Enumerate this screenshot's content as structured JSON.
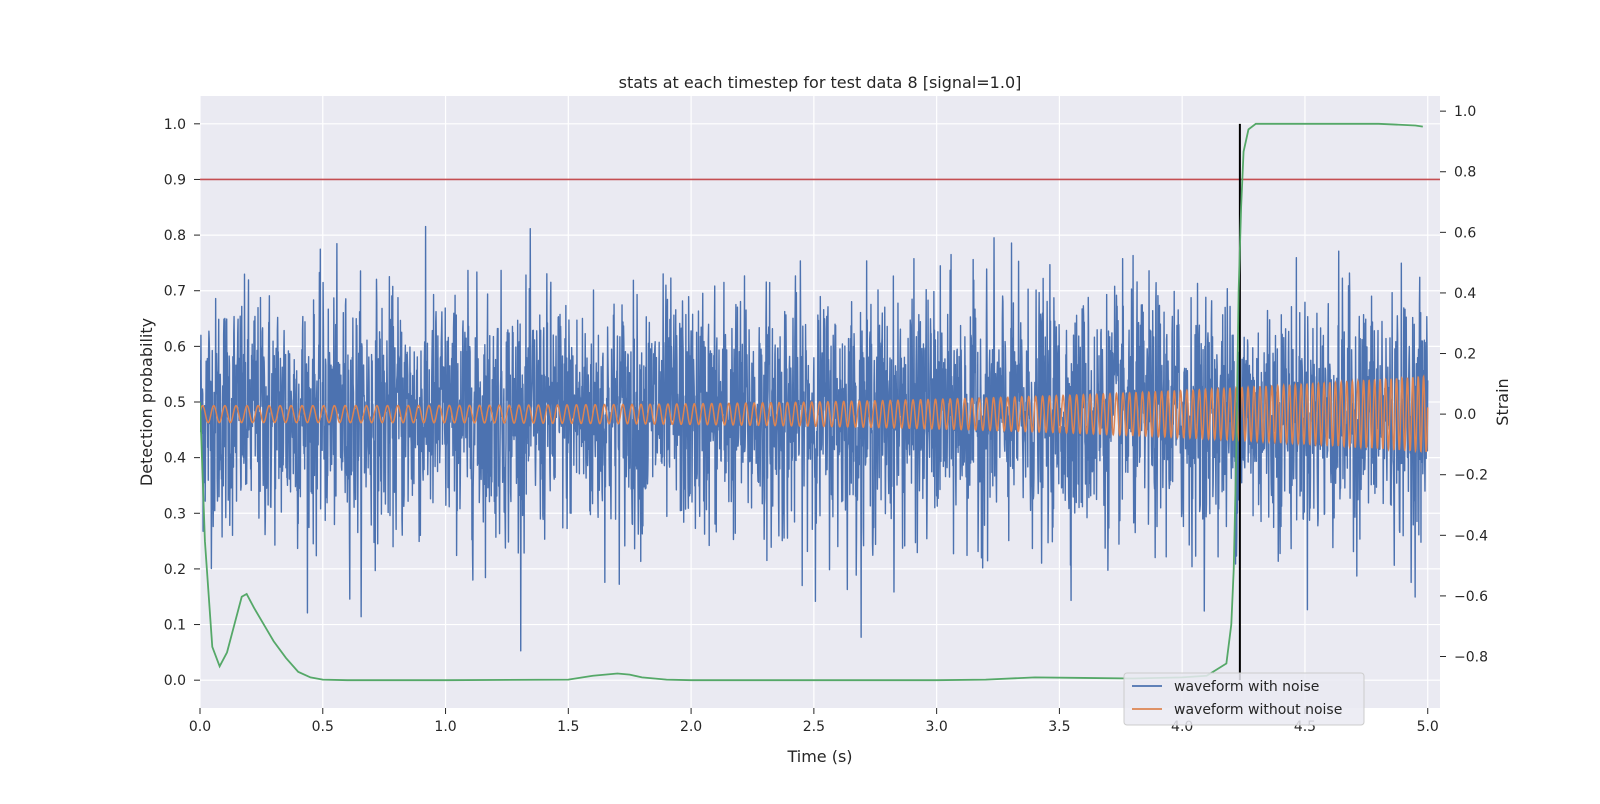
{
  "chart_data": {
    "type": "line",
    "title": "stats at each timestep for test data 8 [signal=1.0]",
    "xlabel": "Time (s)",
    "ylabel_left": "Detection probability",
    "ylabel_right": "Strain",
    "xlim": [
      0.0,
      5.05
    ],
    "ylim_left": [
      -0.05,
      1.05
    ],
    "ylim_right": [
      -0.97,
      1.05
    ],
    "x_ticks": [
      "0.0",
      "0.5",
      "1.0",
      "1.5",
      "2.0",
      "2.5",
      "3.0",
      "3.5",
      "4.0",
      "4.5",
      "5.0"
    ],
    "x_tick_values": [
      0.0,
      0.5,
      1.0,
      1.5,
      2.0,
      2.5,
      3.0,
      3.5,
      4.0,
      4.5,
      5.0
    ],
    "y_left_ticks": [
      "0.0",
      "0.1",
      "0.2",
      "0.3",
      "0.4",
      "0.5",
      "0.6",
      "0.7",
      "0.8",
      "0.9",
      "1.0"
    ],
    "y_left_tick_values": [
      0.0,
      0.1,
      0.2,
      0.3,
      0.4,
      0.5,
      0.6,
      0.7,
      0.8,
      0.9,
      1.0
    ],
    "y_right_ticks": [
      "−0.8",
      "−0.6",
      "−0.4",
      "−0.2",
      "0.0",
      "0.2",
      "0.4",
      "0.6",
      "0.8",
      "1.0"
    ],
    "y_right_tick_values": [
      -0.8,
      -0.6,
      -0.4,
      -0.2,
      0.0,
      0.2,
      0.4,
      0.6,
      0.8,
      1.0
    ],
    "grid": true,
    "legend_placement": "lower-right",
    "colors": {
      "background": "#eaeaf2",
      "grid": "#ffffff",
      "noisy": "#4c72b0",
      "clean": "#dd8452",
      "probability": "#55a868",
      "threshold": "#c44e52",
      "detection": "#000000"
    },
    "threshold": 0.9,
    "detection_time": 4.235,
    "series": [
      {
        "name": "waveform with noise",
        "axis": "right",
        "description_points": "random noise, amplitude ~0.3-0.85 strain peaks",
        "duration": 5.0,
        "amplitude": 0.32
      },
      {
        "name": "waveform without noise",
        "axis": "right",
        "duration": 5.0,
        "amplitude_start": 0.028,
        "amplitude_end": 0.125,
        "freq_start": 22,
        "freq_end": 46
      },
      {
        "axis": "left",
        "x": [
          0.0,
          0.02,
          0.05,
          0.08,
          0.11,
          0.14,
          0.17,
          0.19,
          0.22,
          0.26,
          0.3,
          0.35,
          0.4,
          0.45,
          0.5,
          0.6,
          1.0,
          1.5,
          1.6,
          1.7,
          1.75,
          1.8,
          1.9,
          2.0,
          3.0,
          3.2,
          3.4,
          3.6,
          3.8,
          4.0,
          4.1,
          4.18,
          4.2,
          4.21,
          4.22,
          4.23,
          4.24,
          4.25,
          4.27,
          4.3,
          4.5,
          4.8,
          4.95,
          4.98
        ],
        "y": [
          0.5,
          0.25,
          0.06,
          0.025,
          0.05,
          0.1,
          0.15,
          0.155,
          0.13,
          0.1,
          0.07,
          0.04,
          0.015,
          0.005,
          0.001,
          0.0,
          0.0,
          0.001,
          0.008,
          0.012,
          0.01,
          0.005,
          0.001,
          0.0,
          0.0,
          0.001,
          0.005,
          0.004,
          0.003,
          0.005,
          0.008,
          0.03,
          0.1,
          0.2,
          0.4,
          0.7,
          0.85,
          0.95,
          0.99,
          1.0,
          1.0,
          1.0,
          0.997,
          0.995
        ]
      }
    ],
    "legend": [
      "waveform with noise",
      "waveform without noise"
    ]
  }
}
